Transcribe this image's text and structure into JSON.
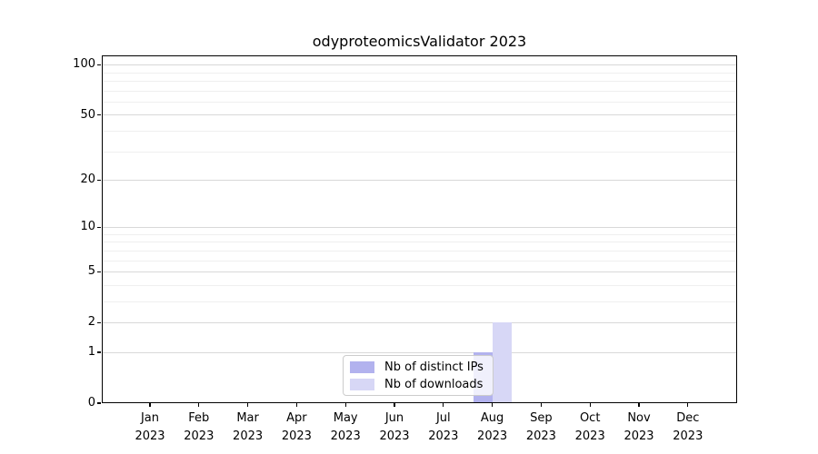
{
  "chart_data": {
    "type": "bar",
    "title": "odyproteomicsValidator 2023",
    "categories": [
      "Jan 2023",
      "Feb 2023",
      "Mar 2023",
      "Apr 2023",
      "May 2023",
      "Jun 2023",
      "Jul 2023",
      "Aug 2023",
      "Sep 2023",
      "Oct 2023",
      "Nov 2023",
      "Dec 2023"
    ],
    "series": [
      {
        "name": "Nb of distinct IPs",
        "color": "#b2b2ee",
        "values": [
          0,
          0,
          0,
          0,
          0,
          0,
          0,
          1,
          0,
          0,
          0,
          0
        ]
      },
      {
        "name": "Nb of downloads",
        "color": "#d7d7f6",
        "values": [
          0,
          0,
          0,
          0,
          0,
          0,
          0,
          2,
          0,
          0,
          0,
          0
        ]
      }
    ],
    "yticks": [
      0,
      1,
      2,
      5,
      10,
      20,
      50,
      100
    ],
    "yminor_gridlines": [
      3,
      4,
      6,
      7,
      8,
      9,
      30,
      40,
      60,
      70,
      80,
      90
    ],
    "yscale": "log1p",
    "ylim": [
      0,
      114
    ],
    "xlabel": "",
    "ylabel": "",
    "grid": "horizontal major+minor",
    "legend": {
      "position": "lower center"
    },
    "colors": {
      "spine": "#000000",
      "grid_major": "#d8d8d8",
      "grid_minor": "#efefef"
    }
  }
}
